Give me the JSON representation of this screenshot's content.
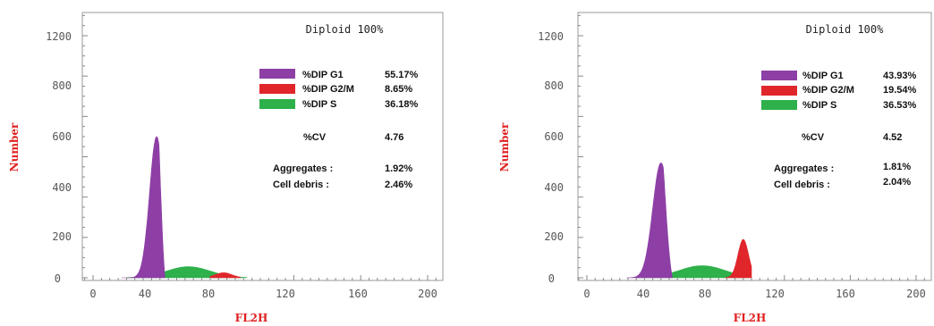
{
  "colors": {
    "g1": "#8e3fa6",
    "g2m": "#e0262b",
    "s": "#2eb04a",
    "axis_label": "#e02020",
    "tick": "#555555",
    "frame": "#999999"
  },
  "chart_data": [
    {
      "type": "area",
      "title": "Diploid 100%",
      "xlabel": "FL2H",
      "ylabel": "Number",
      "xlim": [
        -5,
        210
      ],
      "ylim": [
        0,
        1300
      ],
      "x_ticks": [
        "0",
        "40",
        "80",
        "120",
        "160",
        "200"
      ],
      "y_ticks": [
        "0",
        "200",
        "400",
        "600",
        "800",
        "1200"
      ],
      "series": [
        {
          "name": "%DIP G1",
          "color_key": "g1",
          "peak_x": 38,
          "peak_y": 700,
          "width": 4.2,
          "from_x": 17,
          "to_x": 43
        },
        {
          "name": "%DIP G2/M",
          "color_key": "g2m",
          "peak_x": 78,
          "peak_y": 25,
          "width": 5,
          "from_x": 70,
          "to_x": 88
        },
        {
          "name": "%DIP S",
          "color_key": "s",
          "peak_x": 57,
          "peak_y": 55,
          "width": 13,
          "from_x": 20,
          "to_x": 92
        }
      ],
      "legend": [
        {
          "label": "%DIP G1",
          "value": "55.17%",
          "color_key": "g1"
        },
        {
          "label": "%DIP G2/M",
          "value": "8.65%",
          "color_key": "g2m"
        },
        {
          "label": "%DIP S",
          "value": "36.18%",
          "color_key": "s"
        }
      ],
      "stats": [
        {
          "label": "%CV",
          "value": "4.76"
        },
        {
          "label": "Aggregates :",
          "value": "1.92%"
        },
        {
          "label": "Cell debris :",
          "value": "2.46%"
        }
      ]
    },
    {
      "type": "area",
      "title": "Diploid 100%",
      "xlabel": "FL2H",
      "ylabel": "Number",
      "xlim": [
        -5,
        210
      ],
      "ylim": [
        0,
        1300
      ],
      "x_ticks": [
        "0",
        "40",
        "80",
        "120",
        "160",
        "200"
      ],
      "y_ticks": [
        "0",
        "200",
        "400",
        "600",
        "800",
        "1200"
      ],
      "series": [
        {
          "name": "%DIP G1",
          "color_key": "g1",
          "peak_x": 45,
          "peak_y": 570,
          "width": 5,
          "from_x": 24,
          "to_x": 52
        },
        {
          "name": "%DIP G2/M",
          "color_key": "g2m",
          "peak_x": 95,
          "peak_y": 190,
          "width": 3.2,
          "from_x": 84,
          "to_x": 100
        },
        {
          "name": "%DIP S",
          "color_key": "s",
          "peak_x": 70,
          "peak_y": 60,
          "width": 14,
          "from_x": 30,
          "to_x": 98
        }
      ],
      "legend": [
        {
          "label": "%DIP G1",
          "value": "43.93%",
          "color_key": "g1"
        },
        {
          "label": "%DIP G2/M",
          "value": "19.54%",
          "color_key": "g2m"
        },
        {
          "label": "%DIP S",
          "value": "36.53%",
          "color_key": "s"
        }
      ],
      "stats": [
        {
          "label": "%CV",
          "value": "4.52"
        },
        {
          "label": "Aggregates :",
          "value": "1.81%"
        },
        {
          "label": "Cell debris :",
          "value": "2.04%"
        }
      ]
    }
  ]
}
